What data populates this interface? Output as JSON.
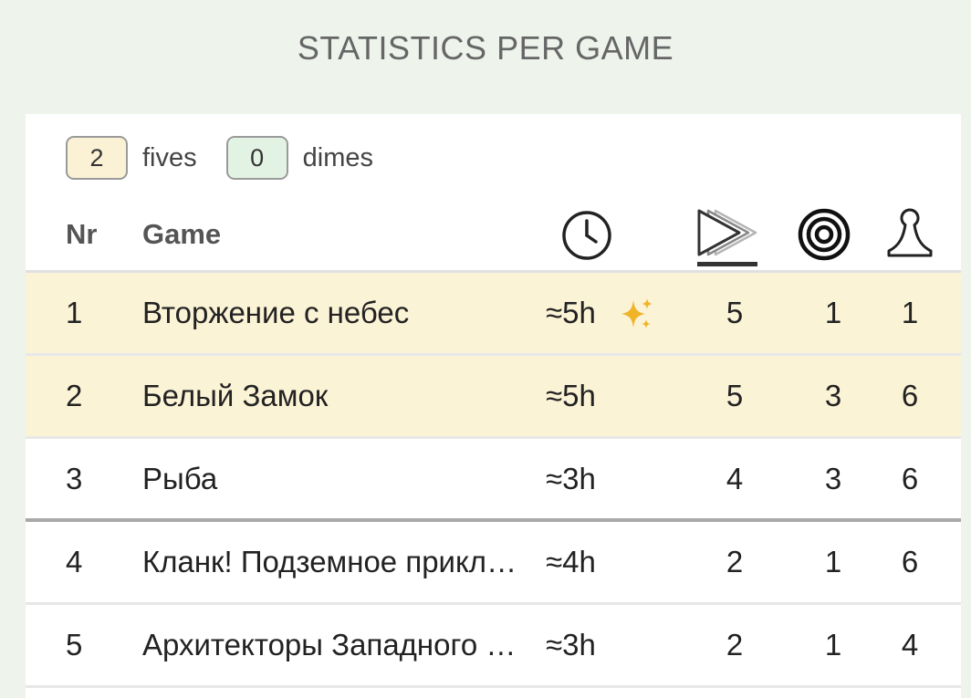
{
  "page_title": "STATISTICS PER GAME",
  "counters": {
    "fives_value": "2",
    "fives_label": "fives",
    "dimes_value": "0",
    "dimes_label": "dimes"
  },
  "columns": {
    "nr": "Nr",
    "game": "Game",
    "time_icon": "clock-icon",
    "plays_icon": "double-play-icon",
    "goal_icon": "target-icon",
    "players_icon": "pawn-icon"
  },
  "sorted_column": "plays",
  "rows": [
    {
      "nr": "1",
      "game": "Вторжение с небес",
      "time": "≈5h",
      "new": true,
      "plays": "5",
      "goal": "1",
      "players": "1",
      "highlight": true
    },
    {
      "nr": "2",
      "game": "Белый Замок",
      "time": "≈5h",
      "new": false,
      "plays": "5",
      "goal": "3",
      "players": "6",
      "highlight": true
    },
    {
      "nr": "3",
      "game": "Рыба",
      "time": "≈3h",
      "new": false,
      "plays": "4",
      "goal": "3",
      "players": "6",
      "highlight": false
    },
    {
      "nr": "4",
      "game": "Кланк! Подземное приключение",
      "time": "≈4h",
      "new": false,
      "plays": "2",
      "goal": "1",
      "players": "6",
      "highlight": false
    },
    {
      "nr": "5",
      "game": "Архитекторы Западного королевства",
      "time": "≈3h",
      "new": false,
      "plays": "2",
      "goal": "1",
      "players": "4",
      "highlight": false
    }
  ],
  "colors": {
    "highlight_row": "#fbf3d6",
    "fives_box": "#fbf2d5",
    "dimes_box": "#e3f3e3",
    "sparkle": "#f0b429",
    "background": "#eef3ec"
  }
}
